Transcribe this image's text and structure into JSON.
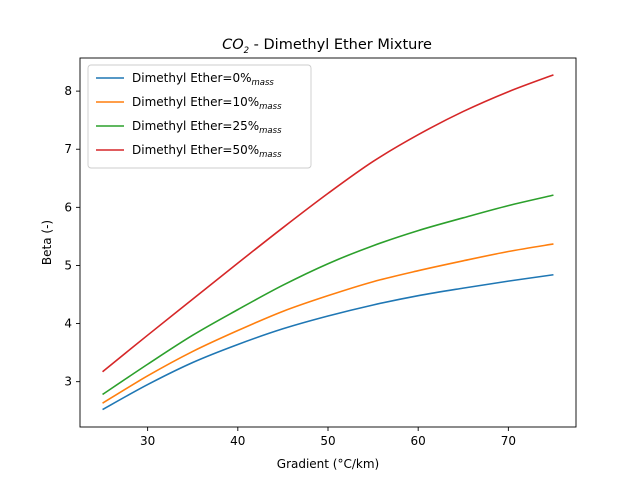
{
  "chart_data": {
    "type": "line",
    "title": {
      "main": "CO",
      "sub": "2",
      "rest": " - Dimethyl Ether Mixture"
    },
    "xlabel": "Gradient (°C/km)",
    "ylabel": "Beta (-)",
    "xlim": [
      22.5,
      77.5
    ],
    "ylim": [
      2.22,
      8.57
    ],
    "xticks": [
      30,
      40,
      50,
      60,
      70
    ],
    "yticks": [
      3,
      4,
      5,
      6,
      7,
      8
    ],
    "legend_position": "upper-left",
    "grid": false,
    "x": [
      25,
      30,
      35,
      40,
      45,
      50,
      55,
      60,
      65,
      70,
      75
    ],
    "series": [
      {
        "name": "Dimethyl Ether=0%",
        "subscript": "mass",
        "color": "#1f77b4",
        "values": [
          2.52,
          2.95,
          3.33,
          3.64,
          3.91,
          4.13,
          4.32,
          4.48,
          4.61,
          4.73,
          4.84
        ]
      },
      {
        "name": "Dimethyl Ether=10%",
        "subscript": "mass",
        "color": "#ff7f0e",
        "values": [
          2.63,
          3.1,
          3.52,
          3.88,
          4.21,
          4.48,
          4.72,
          4.91,
          5.08,
          5.24,
          5.37
        ]
      },
      {
        "name": "Dimethyl Ether=25%",
        "subscript": "mass",
        "color": "#2ca02c",
        "values": [
          2.78,
          3.3,
          3.8,
          4.24,
          4.66,
          5.03,
          5.34,
          5.6,
          5.82,
          6.03,
          6.21
        ]
      },
      {
        "name": "Dimethyl Ether=50%",
        "subscript": "mass",
        "color": "#d62728",
        "values": [
          3.17,
          3.8,
          4.42,
          5.04,
          5.65,
          6.24,
          6.79,
          7.25,
          7.65,
          7.99,
          8.28
        ]
      }
    ]
  }
}
